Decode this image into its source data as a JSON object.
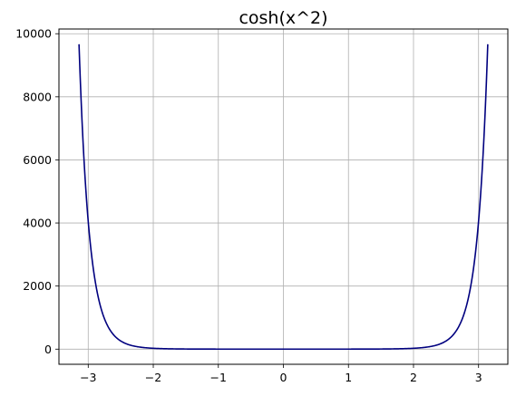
{
  "chart_data": {
    "type": "line",
    "title": "cosh(x^2)",
    "xlabel": "",
    "ylabel": "",
    "function": "cosh(x^2)",
    "x_range": [
      -3.14159,
      3.14159
    ],
    "xlim": [
      -3.45,
      3.45
    ],
    "ylim": [
      -480,
      10150
    ],
    "x_ticks": [
      -3,
      -2,
      -1,
      0,
      1,
      2,
      3
    ],
    "x_tick_labels": [
      "−3",
      "−2",
      "−1",
      "0",
      "1",
      "2",
      "3"
    ],
    "y_ticks": [
      0,
      2000,
      4000,
      6000,
      8000,
      10000
    ],
    "y_tick_labels": [
      "0",
      "2000",
      "4000",
      "6000",
      "8000",
      "10000"
    ],
    "grid": true,
    "legend": false,
    "series": [
      {
        "color": "#00007f",
        "x": [
          -3.14159,
          -3.0,
          -2.9,
          -2.8,
          -2.7,
          -2.6,
          -2.5,
          -2.4,
          -2.2,
          -2.0,
          -1.5,
          -1.0,
          0.0,
          1.0,
          1.5,
          2.0,
          2.2,
          2.4,
          2.5,
          2.6,
          2.7,
          2.8,
          2.9,
          3.0,
          3.14159
        ],
        "y": [
          9672,
          4052,
          2243,
          1272,
          739,
          432,
          259,
          159,
          63,
          27,
          4.8,
          1.5,
          1,
          1.5,
          4.8,
          27,
          63,
          159,
          259,
          432,
          739,
          1272,
          2243,
          4052,
          9672
        ]
      }
    ]
  }
}
